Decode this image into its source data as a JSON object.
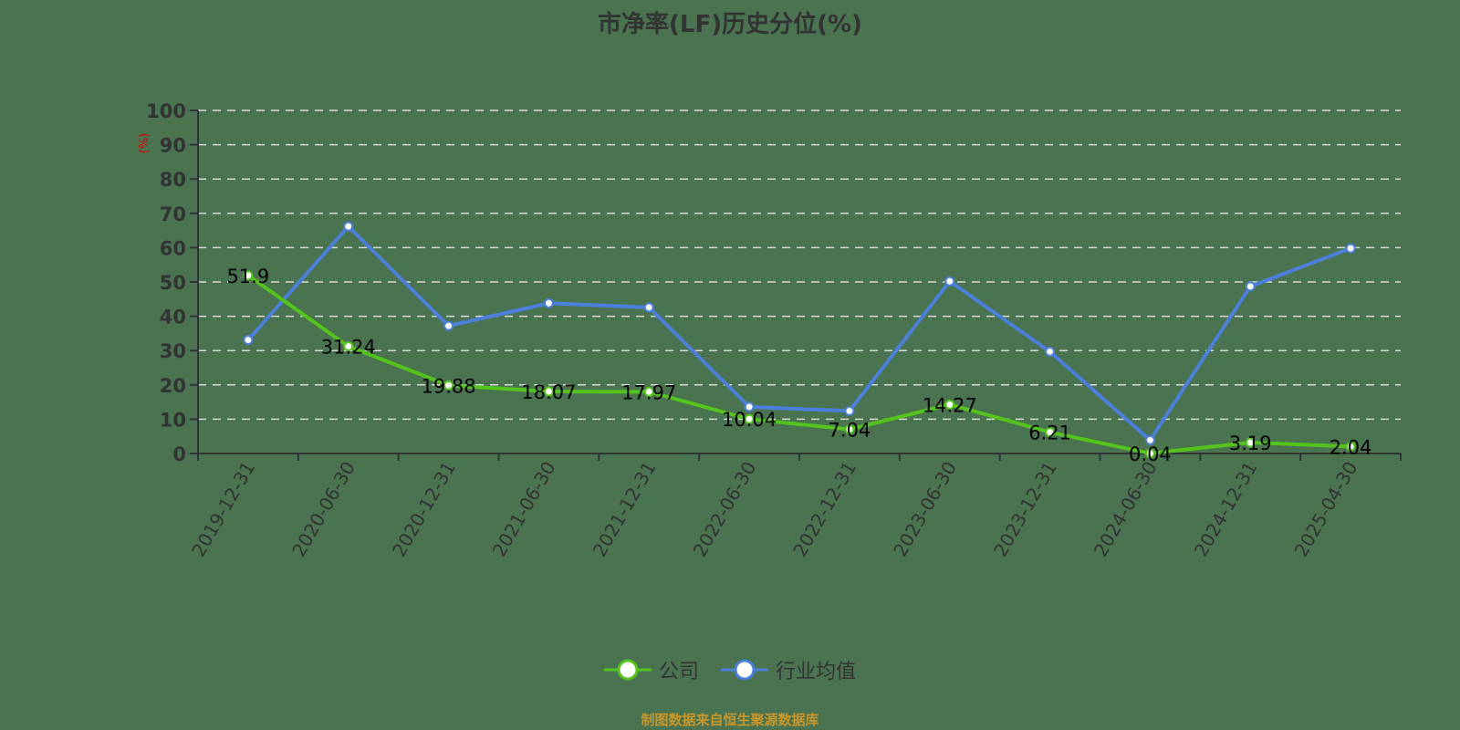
{
  "title": "市净率(LF)历史分位(%)",
  "footer": "制图数据来自恒生聚源数据库",
  "legend": [
    {
      "label": "公司",
      "color": "#52c41a"
    },
    {
      "label": "行业均值",
      "color": "#4a7fdc"
    }
  ],
  "colors": {
    "background": "#4a7350",
    "company": "#52c41a",
    "industry": "#4a7fdc",
    "grid": "#d9d9d9",
    "axis": "#333333",
    "unit": "#e00000",
    "footer": "#c8962a"
  },
  "chart_data": {
    "type": "line",
    "title": "市净率(LF)历史分位(%)",
    "xlabel": "",
    "ylabel": "(%)",
    "ylim": [
      0,
      100
    ],
    "yticks": [
      0,
      10,
      20,
      30,
      40,
      50,
      60,
      70,
      80,
      90,
      100
    ],
    "grid": true,
    "legend_position": "bottom",
    "categories": [
      "2019-12-31",
      "2020-06-30",
      "2020-12-31",
      "2021-06-30",
      "2021-12-31",
      "2022-06-30",
      "2022-12-31",
      "2023-06-30",
      "2023-12-31",
      "2024-06-30",
      "2024-12-31",
      "2025-04-30"
    ],
    "series": [
      {
        "name": "公司",
        "values": [
          51.9,
          31.24,
          19.88,
          18.07,
          17.97,
          10.04,
          7.04,
          14.27,
          6.21,
          0.04,
          3.19,
          2.04
        ],
        "labels_shown": true
      },
      {
        "name": "行业均值",
        "values": [
          33.1,
          66.2,
          37.2,
          43.8,
          42.6,
          13.6,
          12.4,
          50.2,
          29.7,
          3.9,
          48.7,
          59.8
        ],
        "labels_shown": false
      }
    ]
  }
}
